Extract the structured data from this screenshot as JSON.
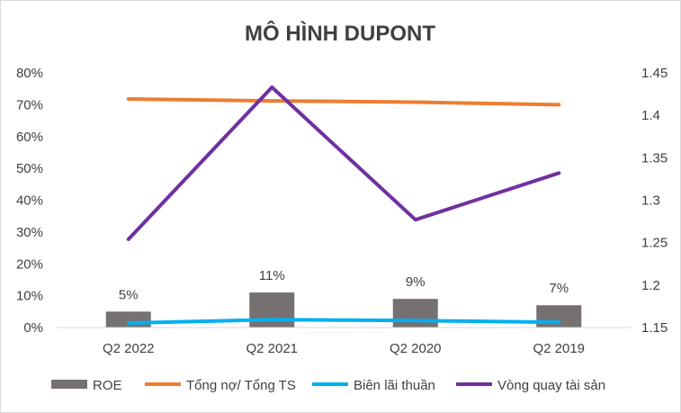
{
  "chart_data": {
    "type": "bar+line",
    "title": "MÔ HÌNH DUPONT",
    "categories": [
      "Q2 2022",
      "Q2 2021",
      "Q2 2020",
      "Q2 2019"
    ],
    "y_left": {
      "ticks": [
        "0%",
        "10%",
        "20%",
        "30%",
        "40%",
        "50%",
        "60%",
        "70%",
        "80%"
      ],
      "range": [
        0,
        0.8
      ]
    },
    "y_right": {
      "ticks": [
        "1.15",
        "1.2",
        "1.25",
        "1.3",
        "1.35",
        "1.4",
        "1.45"
      ],
      "range": [
        1.15,
        1.45
      ]
    },
    "series": [
      {
        "name": "ROE",
        "type": "bar",
        "axis": "left",
        "color": "#767171",
        "values": [
          0.05,
          0.11,
          0.09,
          0.07
        ],
        "labels": [
          "5%",
          "11%",
          "9%",
          "7%"
        ]
      },
      {
        "name": "Tổng nợ/ Tổng TS",
        "type": "line",
        "axis": "left",
        "color": "#ED7D31",
        "values": [
          0.718,
          0.712,
          0.708,
          0.7
        ]
      },
      {
        "name": "Biên lãi thuần",
        "type": "line",
        "axis": "left",
        "color": "#00B0F0",
        "values": [
          0.014,
          0.025,
          0.022,
          0.016
        ]
      },
      {
        "name": "Vòng quay tài sản",
        "type": "line",
        "axis": "right",
        "color": "#7030A0",
        "values": [
          1.254,
          1.433,
          1.277,
          1.332
        ]
      }
    ],
    "legend": "bottom",
    "grid": false
  }
}
